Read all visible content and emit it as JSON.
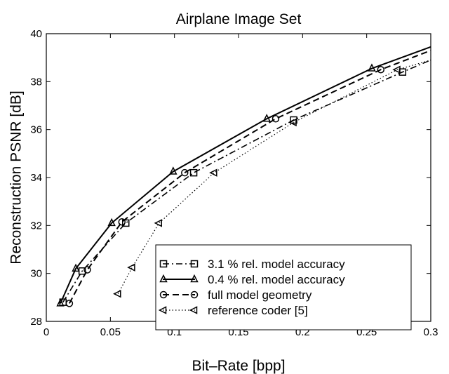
{
  "chart_data": {
    "type": "line",
    "title": "Airplane Image Set",
    "xlabel": "Bit–Rate [bpp]",
    "ylabel": "Reconstruction PSNR [dB]",
    "xlim": [
      0,
      0.3
    ],
    "ylim": [
      28,
      40
    ],
    "xticks": [
      0,
      0.05,
      0.1,
      0.15,
      0.2,
      0.25,
      0.3
    ],
    "yticks": [
      28,
      30,
      32,
      34,
      36,
      38,
      40
    ],
    "xtick_labels": [
      "0",
      "0.05",
      "0.1",
      "0.15",
      "0.2",
      "0.25",
      "0.3"
    ],
    "ytick_labels": [
      "28",
      "30",
      "32",
      "34",
      "36",
      "38",
      "40"
    ],
    "grid": false,
    "legend_position": "bottom-right",
    "series": [
      {
        "name": "3.1 % rel. model accuracy",
        "line_style": "dashdot",
        "marker": "square",
        "color": "#000000",
        "x": [
          0.013,
          0.028,
          0.062,
          0.115,
          0.193,
          0.278,
          0.3
        ],
        "y": [
          28.8,
          30.1,
          32.1,
          34.2,
          36.4,
          38.4,
          38.9
        ]
      },
      {
        "name": "0.4 % rel. model accuracy",
        "line_style": "solid",
        "marker": "triangle-up",
        "color": "#000000",
        "x": [
          0.011,
          0.023,
          0.051,
          0.099,
          0.172,
          0.254,
          0.3
        ],
        "y": [
          28.75,
          30.2,
          32.1,
          34.25,
          36.45,
          38.55,
          39.45
        ]
      },
      {
        "name": "full model geometry",
        "line_style": "dashed",
        "marker": "circle",
        "color": "#000000",
        "x": [
          0.018,
          0.032,
          0.059,
          0.108,
          0.179,
          0.261,
          0.3
        ],
        "y": [
          28.75,
          30.15,
          32.15,
          34.2,
          36.45,
          38.5,
          39.3
        ]
      },
      {
        "name": "reference coder [5]",
        "line_style": "dotted",
        "marker": "triangle-left",
        "color": "#000000",
        "x": [
          0.056,
          0.067,
          0.088,
          0.131,
          0.193,
          0.274,
          0.3
        ],
        "y": [
          29.15,
          30.25,
          32.1,
          34.2,
          36.3,
          38.5,
          38.9
        ]
      }
    ]
  }
}
